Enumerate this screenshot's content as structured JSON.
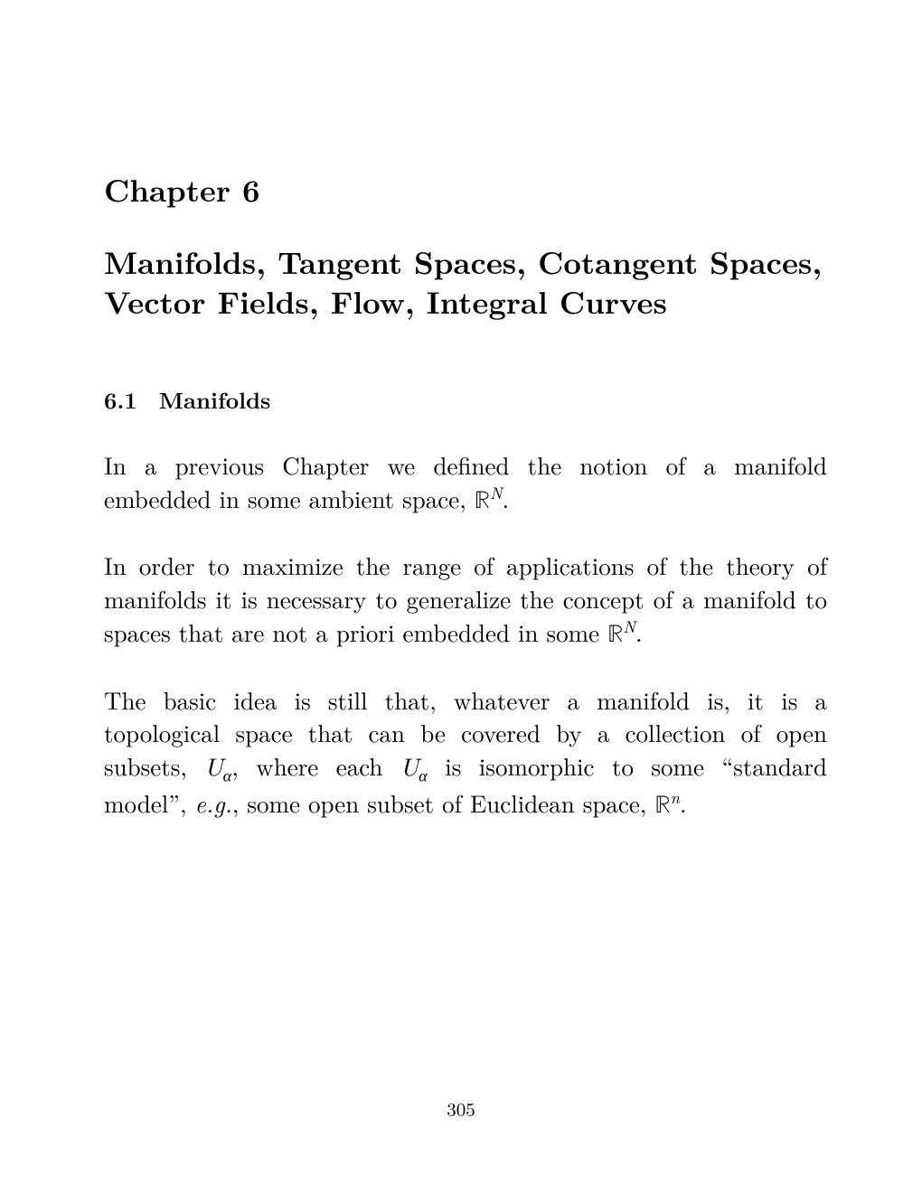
{
  "chapter": {
    "label": "Chapter 6",
    "title": "Manifolds, Tangent Spaces, Cotangent Spaces, Vector Fields, Flow, Integral Curves"
  },
  "section": {
    "number": "6.1",
    "title": "Manifolds"
  },
  "paragraphs": {
    "p1_a": "In a previous Chapter we defined the notion of a manifold embedded in some ambient space, ",
    "p1_b": ".",
    "p2_a": "In order to maximize the range of applications of the theory of manifolds it is necessary to generalize the concept of a manifold to spaces that are not a priori embedded in some ",
    "p2_b": ".",
    "p3_a": "The basic idea is still that, whatever a manifold is, it is a topological space that can be covered by a collection of open subsets, ",
    "p3_b": ", where each ",
    "p3_c": " is isomorphic to some “standard model”, ",
    "p3_eg": "e.g.",
    "p3_d": ", some open subset of Euclidean space, ",
    "p3_e": "."
  },
  "math": {
    "RN": "ℝ",
    "expN": "N",
    "U": "U",
    "alpha": "α",
    "expn": "n"
  },
  "page_number": "305"
}
